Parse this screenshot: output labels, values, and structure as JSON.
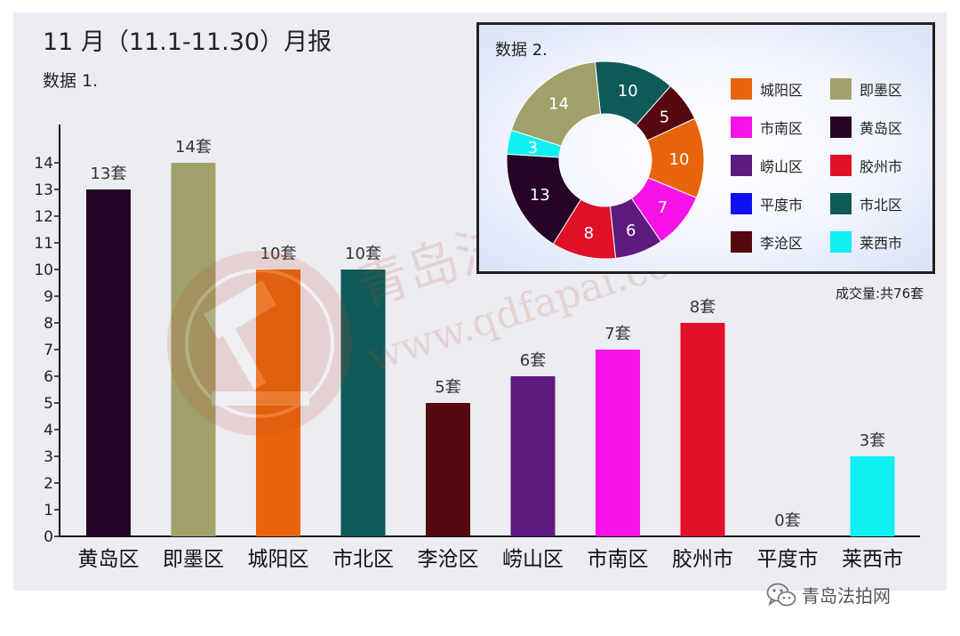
{
  "header": {
    "title": "11 月（11.1-11.30）月报",
    "bar_caption": "数据 1.",
    "pie_caption": "数据 2."
  },
  "chart_data": [
    {
      "type": "bar",
      "categories": [
        "黄岛区",
        "即墨区",
        "城阳区",
        "市北区",
        "李沧区",
        "崂山区",
        "市南区",
        "胶州市",
        "平度市",
        "莱西市"
      ],
      "values": [
        13,
        14,
        10,
        10,
        5,
        6,
        7,
        8,
        0,
        3
      ],
      "data_labels": [
        "13套",
        "14套",
        "10套",
        "10套",
        "5套",
        "6套",
        "7套",
        "8套",
        "0套",
        "3套"
      ],
      "colors": [
        "#250428",
        "#a0a06a",
        "#e8640a",
        "#0e5a58",
        "#560810",
        "#5e1a7e",
        "#f812e8",
        "#e01028",
        "#1010ee",
        "#10f0f0"
      ],
      "yticks": [
        "0",
        "1",
        "2",
        "3",
        "4",
        "5",
        "6",
        "7",
        "8",
        "9",
        "10",
        "11",
        "12",
        "13",
        "14"
      ],
      "ylim": [
        0,
        14
      ],
      "grid": false
    },
    {
      "type": "pie",
      "donut": true,
      "slices": [
        {
          "name": "市北区",
          "value": 10,
          "color": "#0e5a58"
        },
        {
          "name": "李沧区",
          "value": 5,
          "color": "#560810"
        },
        {
          "name": "城阳区",
          "value": 10,
          "color": "#e8640a"
        },
        {
          "name": "市南区",
          "value": 7,
          "color": "#f812e8"
        },
        {
          "name": "崂山区",
          "value": 6,
          "color": "#5e1a7e"
        },
        {
          "name": "胶州市",
          "value": 8,
          "color": "#e01028"
        },
        {
          "name": "黄岛区",
          "value": 13,
          "color": "#250428"
        },
        {
          "name": "莱西市",
          "value": 3,
          "color": "#10f0f0"
        },
        {
          "name": "即墨区",
          "value": 14,
          "color": "#a0a06a"
        }
      ],
      "slice_label_colors": [
        "#ffffff",
        "#ffffff",
        "#ffffff",
        "#ffffff",
        "#ffffff",
        "#ffffff",
        "#ffffff",
        "#ffffff",
        "#ffffff"
      ],
      "legend": [
        {
          "name": "城阳区",
          "color": "#e8640a"
        },
        {
          "name": "即墨区",
          "color": "#a0a06a"
        },
        {
          "name": "市南区",
          "color": "#f812e8"
        },
        {
          "name": "黄岛区",
          "color": "#250428"
        },
        {
          "name": "崂山区",
          "color": "#5e1a7e"
        },
        {
          "name": "胶州市",
          "color": "#e01028"
        },
        {
          "name": "平度市",
          "color": "#1010ee"
        },
        {
          "name": "市北区",
          "color": "#0e5a58"
        },
        {
          "name": "李沧区",
          "color": "#560810"
        },
        {
          "name": "莱西市",
          "color": "#10f0f0"
        }
      ],
      "legend_placement": "right",
      "total_label": "成交量:共76套"
    }
  ],
  "watermark": {
    "brand_cn": "青岛法拍网",
    "brand_url": "www.qdfapai.com"
  },
  "footer": {
    "icon": "wechat-icon",
    "text": "青岛法拍网"
  }
}
